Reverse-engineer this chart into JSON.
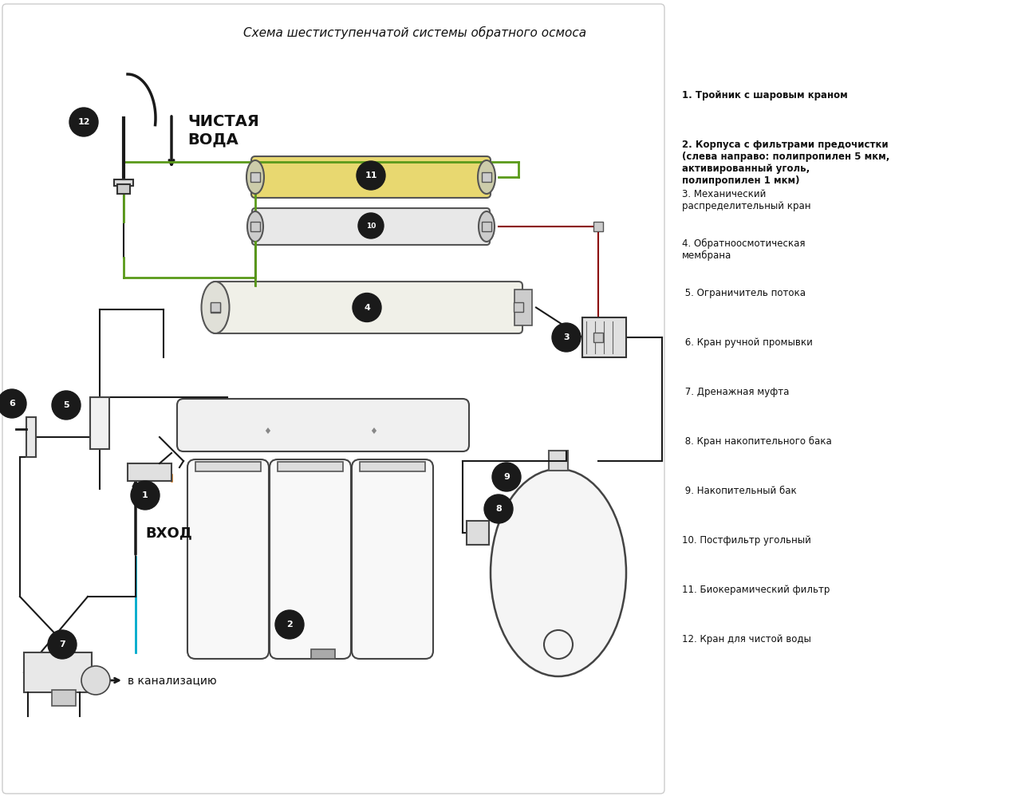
{
  "title": "Схема шестиступенчатой системы обратного осмоса",
  "bg_color": "#ffffff",
  "legend_items": [
    "1. Тройник с шаровым краном",
    "2. Корпуса с фильтрами предочистки\n(слева направо: полипропилен 5 мкм,\nактивированный уголь,\nполипропилен 1 мкм)",
    "3. Механический\nраспределительный кран",
    "4. Обратноосмотическая\nмембрана",
    " 5. Ограничитель потока",
    " 6. Кран ручной промывки",
    " 7. Дренажная муфта",
    " 8. Кран накопительного бака",
    " 9. Накопительный бак",
    "10. Постфильтр угольный",
    "11. Биокерамический фильтр",
    "12. Кран для чистой воды"
  ],
  "clean_water_label": "ЧИСТАЯ\nВОДА",
  "inlet_label": "ВХОД",
  "drain_label": "в канализацию",
  "filter_color": "#f5f5f5",
  "filter_border": "#333333",
  "membrane_color": "#f0f0e8",
  "postfilter_color": "#e8e8e0",
  "biofilter_color": "#f5f0c0",
  "biofilter_fill": "#e8d870",
  "tank_color": "#f5f5f5",
  "line_black": "#1a1a1a",
  "line_green": "#5a9a1a",
  "line_orange": "#cc6600",
  "line_cyan": "#00aacc",
  "line_darkred": "#8b0000",
  "circle_color": "#1a1a1a",
  "number_color": "#ffffff"
}
